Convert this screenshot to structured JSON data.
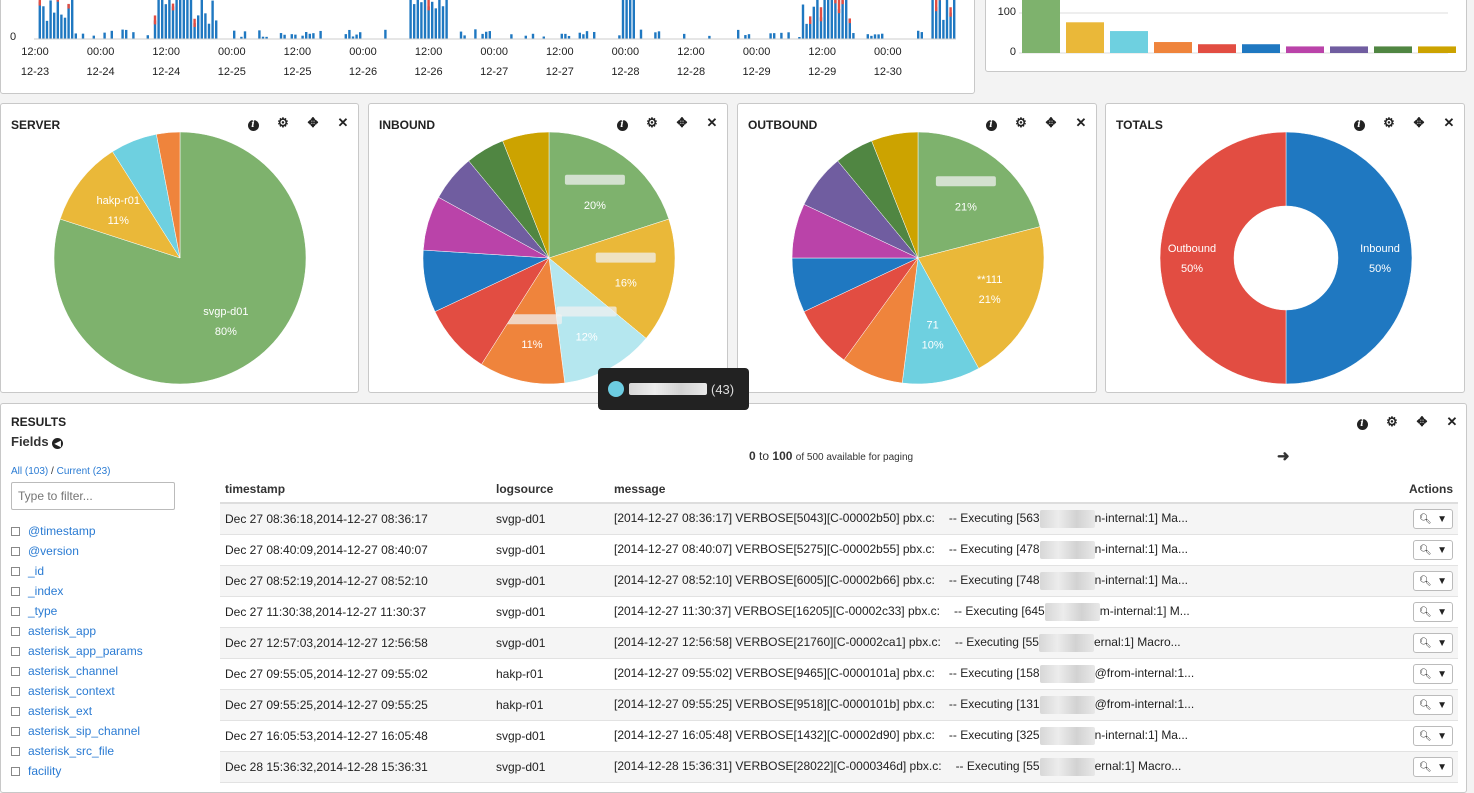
{
  "timeline": {
    "y_zero_label": "0",
    "x_ticks": [
      {
        "time": "12:00",
        "date": "12-23"
      },
      {
        "time": "00:00",
        "date": "12-24"
      },
      {
        "time": "12:00",
        "date": "12-24"
      },
      {
        "time": "00:00",
        "date": "12-25"
      },
      {
        "time": "12:00",
        "date": "12-25"
      },
      {
        "time": "00:00",
        "date": "12-26"
      },
      {
        "time": "12:00",
        "date": "12-26"
      },
      {
        "time": "00:00",
        "date": "12-27"
      },
      {
        "time": "12:00",
        "date": "12-27"
      },
      {
        "time": "00:00",
        "date": "12-28"
      },
      {
        "time": "12:00",
        "date": "12-28"
      },
      {
        "time": "00:00",
        "date": "12-29"
      },
      {
        "time": "12:00",
        "date": "12-29"
      },
      {
        "time": "00:00",
        "date": "12-30"
      }
    ]
  },
  "bar_panel": {
    "y_labels": [
      "100",
      "0"
    ],
    "colors": [
      "#7eb26d",
      "#eab839",
      "#6ed0e0",
      "#ef843c",
      "#e24d42",
      "#1f78c1",
      "#ba43a9",
      "#705da0",
      "#508642",
      "#cca300"
    ]
  },
  "panels": {
    "server": {
      "title": "SERVER"
    },
    "inbound": {
      "title": "INBOUND"
    },
    "outbound": {
      "title": "OUTBOUND"
    },
    "totals": {
      "title": "TOTALS"
    }
  },
  "chart_data": [
    {
      "type": "pie",
      "title": "SERVER",
      "series": [
        {
          "values": [
            80,
            11,
            6,
            3
          ]
        }
      ],
      "labels": [
        "svgp-d01",
        "hakp-r01",
        "",
        ""
      ],
      "label_text": [
        "80%",
        "11%",
        "",
        ""
      ],
      "colors": [
        "#7eb26d",
        "#eab839",
        "#6ed0e0",
        "#ef843c"
      ]
    },
    {
      "type": "pie",
      "title": "INBOUND",
      "series": [
        {
          "values": [
            20,
            16,
            12,
            11,
            9,
            8,
            7,
            6,
            5,
            6
          ]
        }
      ],
      "label_text": [
        "20%",
        "16%",
        "12%",
        "11%",
        "",
        "",
        "",
        "",
        "",
        ""
      ],
      "colors": [
        "#7eb26d",
        "#eab839",
        "#b5e7ef",
        "#ef843c",
        "#e24d42",
        "#1f78c1",
        "#ba43a9",
        "#705da0",
        "#508642",
        "#cca300"
      ]
    },
    {
      "type": "pie",
      "title": "OUTBOUND",
      "series": [
        {
          "values": [
            21,
            21,
            10,
            8,
            8,
            7,
            7,
            7,
            5,
            6
          ]
        }
      ],
      "labels": [
        "",
        "**111",
        "71",
        "",
        "",
        "",
        "",
        "",
        "",
        ""
      ],
      "label_text": [
        "21%",
        "21%",
        "10%",
        "",
        "",
        "",
        "",
        "",
        "",
        ""
      ],
      "colors": [
        "#7eb26d",
        "#eab839",
        "#6ed0e0",
        "#ef843c",
        "#e24d42",
        "#1f78c1",
        "#ba43a9",
        "#705da0",
        "#508642",
        "#cca300"
      ]
    },
    {
      "type": "pie",
      "title": "TOTALS",
      "donut": true,
      "series": [
        {
          "values": [
            50,
            50
          ]
        }
      ],
      "labels": [
        "Inbound",
        "Outbound"
      ],
      "label_text": [
        "50%",
        "50%"
      ],
      "colors": [
        "#1f78c1",
        "#e24d42"
      ]
    }
  ],
  "tooltip": {
    "count": "(43)"
  },
  "results": {
    "title": "RESULTS",
    "fields_heading": "Fields",
    "all_link": "All (103)",
    "separator": " / ",
    "current_link": "Current (23)",
    "filter_placeholder": "Type to filter...",
    "fields": [
      "@timestamp",
      "@version",
      "_id",
      "_index",
      "_type",
      "asterisk_app",
      "asterisk_app_params",
      "asterisk_channel",
      "asterisk_context",
      "asterisk_ext",
      "asterisk_sip_channel",
      "asterisk_src_file",
      "facility"
    ],
    "paging": {
      "from": "0",
      "to_word": "to",
      "to": "100",
      "rest": "of 500 available for paging"
    },
    "columns": [
      "timestamp",
      "logsource",
      "message"
    ],
    "actions_header": "Actions",
    "rows": [
      {
        "ts": "Dec 27 08:36:18,2014-12-27 08:36:17",
        "src": "svgp-d01",
        "msg": "[2014-12-27 08:36:17] VERBOSE[5043][C-00002b50] pbx.c:",
        "exec": "-- Executing [563",
        "tail": "n-internal:1] Ma..."
      },
      {
        "ts": "Dec 27 08:40:09,2014-12-27 08:40:07",
        "src": "svgp-d01",
        "msg": "[2014-12-27 08:40:07] VERBOSE[5275][C-00002b55] pbx.c:",
        "exec": "-- Executing [478",
        "tail": "n-internal:1] Ma..."
      },
      {
        "ts": "Dec 27 08:52:19,2014-12-27 08:52:10",
        "src": "svgp-d01",
        "msg": "[2014-12-27 08:52:10] VERBOSE[6005][C-00002b66] pbx.c:",
        "exec": "-- Executing [748",
        "tail": "n-internal:1] Ma..."
      },
      {
        "ts": "Dec 27 11:30:38,2014-12-27 11:30:37",
        "src": "svgp-d01",
        "msg": "[2014-12-27 11:30:37] VERBOSE[16205][C-00002c33] pbx.c:",
        "exec": "-- Executing [645",
        "tail": "m-internal:1] M..."
      },
      {
        "ts": "Dec 27 12:57:03,2014-12-27 12:56:58",
        "src": "svgp-d01",
        "msg": "[2014-12-27 12:56:58] VERBOSE[21760][C-00002ca1] pbx.c:",
        "exec": "-- Executing [55",
        "tail": "ernal:1] Macro..."
      },
      {
        "ts": "Dec 27 09:55:05,2014-12-27 09:55:02",
        "src": "hakp-r01",
        "msg": "[2014-12-27 09:55:02] VERBOSE[9465][C-0000101a] pbx.c:",
        "exec": "-- Executing [158",
        "tail": "@from-internal:1..."
      },
      {
        "ts": "Dec 27 09:55:25,2014-12-27 09:55:25",
        "src": "hakp-r01",
        "msg": "[2014-12-27 09:55:25] VERBOSE[9518][C-0000101b] pbx.c:",
        "exec": "-- Executing [131",
        "tail": "@from-internal:1..."
      },
      {
        "ts": "Dec 27 16:05:53,2014-12-27 16:05:48",
        "src": "svgp-d01",
        "msg": "[2014-12-27 16:05:48] VERBOSE[1432][C-00002d90] pbx.c:",
        "exec": "-- Executing [325",
        "tail": "n-internal:1] Ma..."
      },
      {
        "ts": "Dec 28 15:36:32,2014-12-28 15:36:31",
        "src": "svgp-d01",
        "msg": "[2014-12-28 15:36:31] VERBOSE[28022][C-0000346d] pbx.c:",
        "exec": "-- Executing [55",
        "tail": "ernal:1] Macro..."
      }
    ]
  }
}
